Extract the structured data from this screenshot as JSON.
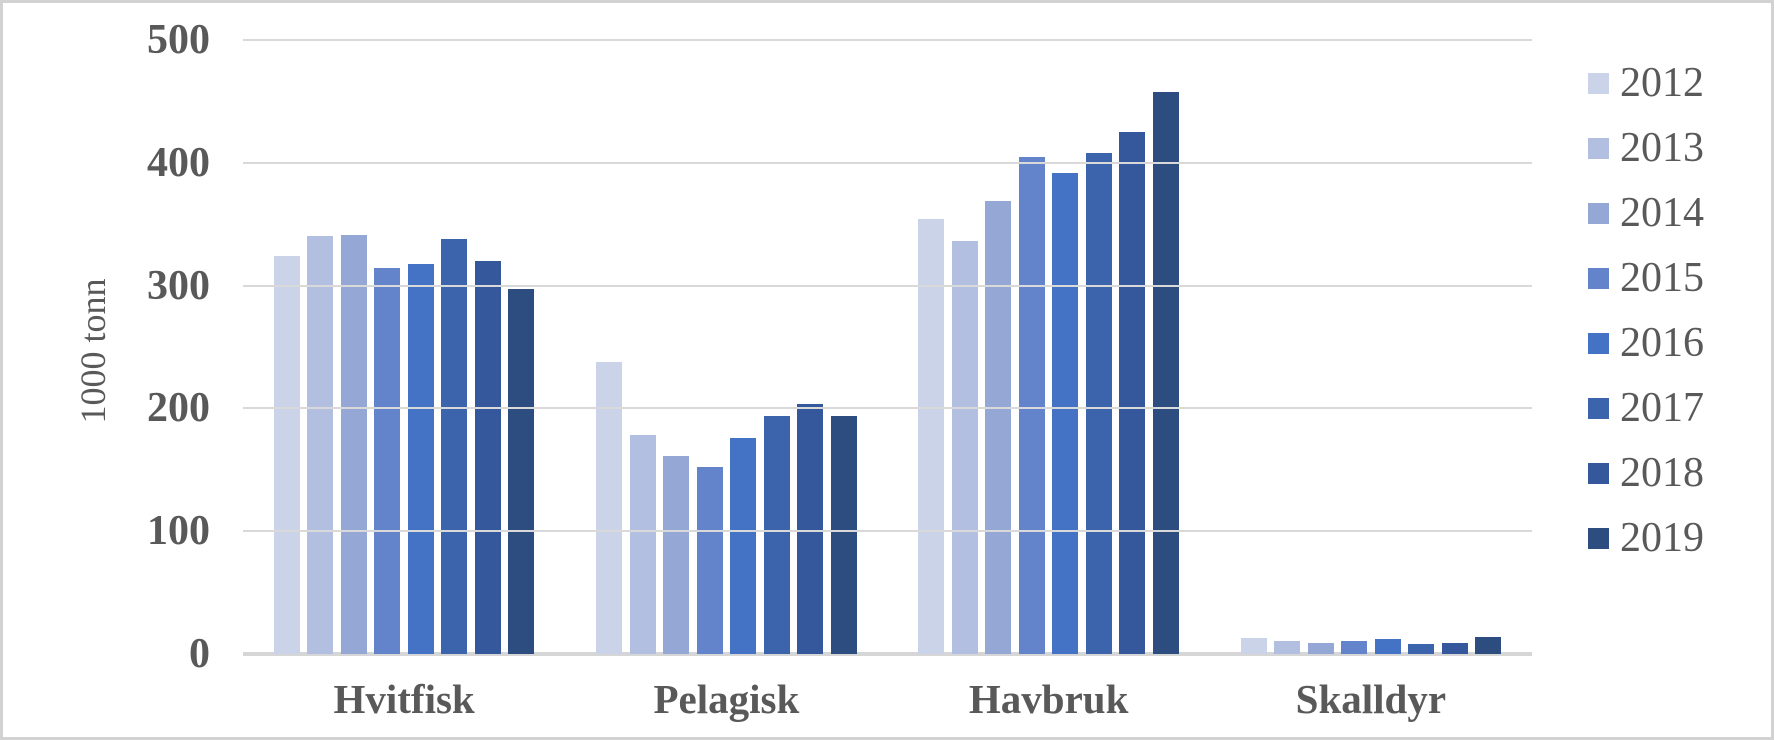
{
  "colors": {
    "text": "#595959",
    "gridline": "#d9d9d9",
    "axis_line": "#d6d6d6",
    "figure_border": "#d2d2d2",
    "background": "#ffffff"
  },
  "chart_data": {
    "type": "bar",
    "title": "",
    "categories": [
      "Hvitfisk",
      "Pelagisk",
      "Havbruk",
      "Skalldyr"
    ],
    "series": [
      {
        "name": "2012",
        "color": "#cad3e8",
        "values": [
          324,
          238,
          354,
          13
        ]
      },
      {
        "name": "2013",
        "color": "#b2bfe0",
        "values": [
          340,
          178,
          336,
          11
        ]
      },
      {
        "name": "2014",
        "color": "#95a7d5",
        "values": [
          341,
          161,
          369,
          9
        ]
      },
      {
        "name": "2015",
        "color": "#6384ca",
        "values": [
          314,
          152,
          405,
          11
        ]
      },
      {
        "name": "2016",
        "color": "#4472c4",
        "values": [
          318,
          176,
          392,
          12
        ]
      },
      {
        "name": "2017",
        "color": "#3b64ad",
        "values": [
          338,
          194,
          408,
          8
        ]
      },
      {
        "name": "2018",
        "color": "#34589b",
        "values": [
          320,
          204,
          425,
          9
        ]
      },
      {
        "name": "2019",
        "color": "#2d4d81",
        "values": [
          297,
          194,
          458,
          14
        ]
      }
    ],
    "xlabel": "",
    "ylabel": "1000 tonn",
    "ylim": [
      0,
      500
    ],
    "yticks": [
      "0",
      "100",
      "200",
      "300",
      "400",
      "500"
    ],
    "grid": true,
    "legend_position": "right"
  }
}
